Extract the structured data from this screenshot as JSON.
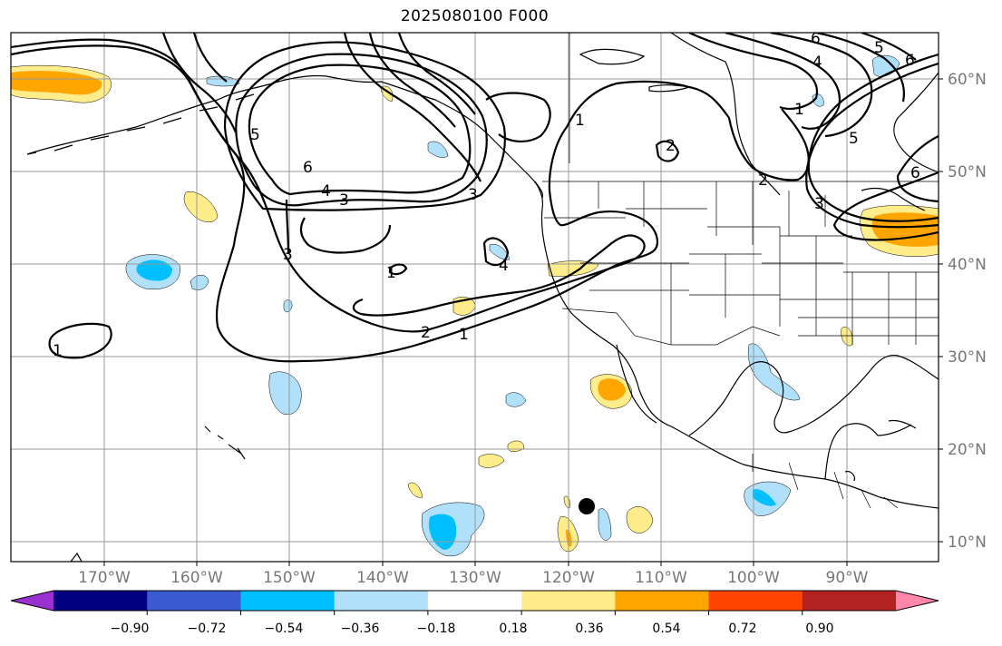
{
  "title": "2025080100 F000",
  "map": {
    "lat_labels": [
      "60°N",
      "50°N",
      "40°N",
      "30°N",
      "20°N",
      "10°N"
    ],
    "lon_labels": [
      "170°W",
      "160°W",
      "150°W",
      "140°W",
      "130°W",
      "120°W",
      "110°W",
      "100°W",
      "90°W"
    ],
    "contour_labels": [
      "1",
      "2",
      "3",
      "4",
      "5",
      "6"
    ],
    "storm_marker": "black-dot"
  },
  "colorbar": {
    "ticks": [
      "−0.90",
      "−0.72",
      "−0.54",
      "−0.36",
      "−0.18",
      "0.18",
      "0.36",
      "0.54",
      "0.72",
      "0.90"
    ],
    "colors": [
      "#9b30d0",
      "#000080",
      "#3a5bcf",
      "#00bfff",
      "#b0e0fa",
      "#ffffff",
      "#ffec8b",
      "#ffa500",
      "#ff4500",
      "#b22222",
      "#ff88aa"
    ]
  }
}
